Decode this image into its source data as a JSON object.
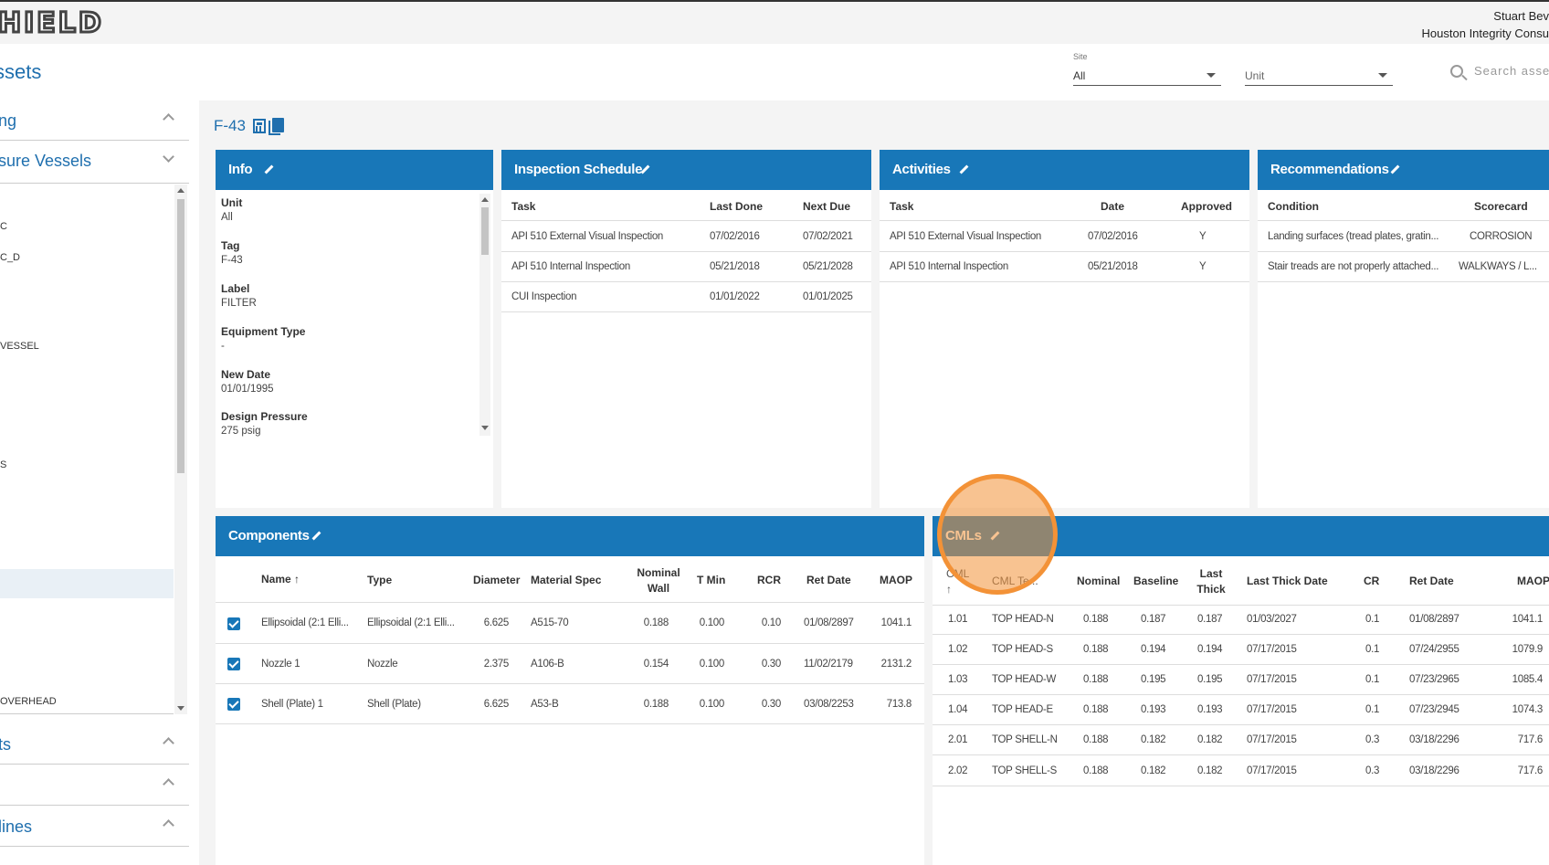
{
  "app": {
    "logo_text": "HIELD"
  },
  "user": {
    "name": "Stuart Bev",
    "org": "Houston Integrity Consu"
  },
  "page": {
    "title": "ssets"
  },
  "filters": {
    "site": {
      "label": "Site",
      "value": "All"
    },
    "unit": {
      "label": "",
      "value": "Unit"
    },
    "search_placeholder": "Search asset"
  },
  "sidebar": {
    "sections": [
      {
        "label": "ng",
        "expanded": false
      },
      {
        "label": "sure Vessels",
        "expanded": true
      },
      {
        "label": "ts",
        "expanded": false
      },
      {
        "label": "",
        "expanded": false
      },
      {
        "label": "lines",
        "expanded": false
      }
    ],
    "items": [
      "C",
      "C_D",
      "VESSEL",
      "S",
      "OVERHEAD"
    ]
  },
  "asset": {
    "tag": "F-43"
  },
  "info": {
    "title": "Info",
    "fields": [
      {
        "label": "Unit",
        "value": "All"
      },
      {
        "label": "Tag",
        "value": "F-43"
      },
      {
        "label": "Label",
        "value": "FILTER"
      },
      {
        "label": "Equipment Type",
        "value": "-"
      },
      {
        "label": "New Date",
        "value": "01/01/1995"
      },
      {
        "label": "Design Pressure",
        "value": "275 psig"
      }
    ]
  },
  "inspection_schedule": {
    "title": "Inspection Schedule",
    "columns": [
      "Task",
      "Last Done",
      "Next Due"
    ],
    "rows": [
      [
        "API 510 External Visual Inspection",
        "07/02/2016",
        "07/02/2021"
      ],
      [
        "API 510 Internal Inspection",
        "05/21/2018",
        "05/21/2028"
      ],
      [
        "CUI Inspection",
        "01/01/2022",
        "01/01/2025"
      ]
    ]
  },
  "activities": {
    "title": "Activities",
    "columns": [
      "Task",
      "Date",
      "Approved"
    ],
    "rows": [
      [
        "API 510 External Visual Inspection",
        "07/02/2016",
        "Y"
      ],
      [
        "API 510 Internal Inspection",
        "05/21/2018",
        "Y"
      ]
    ]
  },
  "recommendations": {
    "title": "Recommendations",
    "columns": [
      "Condition",
      "Scorecard"
    ],
    "rows": [
      [
        "Landing surfaces (tread plates, gratin...",
        "CORROSION"
      ],
      [
        "Stair treads are not properly attached...",
        "WALKWAYS / L..."
      ]
    ]
  },
  "components": {
    "title": "Components",
    "columns": [
      "Name ↑",
      "Type",
      "Diameter",
      "Material Spec",
      "Nominal Wall",
      "T Min",
      "RCR",
      "Ret Date",
      "MAOP"
    ],
    "rows": [
      [
        "Ellipsoidal (2:1 Elli...",
        "Ellipsoidal (2:1 Elli...",
        "6.625",
        "A515-70",
        "0.188",
        "0.100",
        "0.10",
        "01/08/2897",
        "1041.1"
      ],
      [
        "Nozzle 1",
        "Nozzle",
        "2.375",
        "A106-B",
        "0.154",
        "0.100",
        "0.30",
        "11/02/2179",
        "2131.2"
      ],
      [
        "Shell (Plate) 1",
        "Shell (Plate)",
        "6.625",
        "A53-B",
        "0.188",
        "0.100",
        "0.30",
        "03/08/2253",
        "713.8"
      ]
    ]
  },
  "cmls": {
    "title": "CMLs",
    "columns": [
      "CML ↑",
      "CML Te...",
      "Nominal",
      "Baseline",
      "Last Thick",
      "Last Thick Date",
      "CR",
      "Ret Date",
      "MAOP"
    ],
    "rows": [
      [
        "1.01",
        "TOP HEAD-N",
        "0.188",
        "0.187",
        "0.187",
        "01/03/2027",
        "0.1",
        "01/08/2897",
        "1041.1"
      ],
      [
        "1.02",
        "TOP HEAD-S",
        "0.188",
        "0.194",
        "0.194",
        "07/17/2015",
        "0.1",
        "07/24/2955",
        "1079.9"
      ],
      [
        "1.03",
        "TOP HEAD-W",
        "0.188",
        "0.195",
        "0.195",
        "07/17/2015",
        "0.1",
        "07/23/2965",
        "1085.4"
      ],
      [
        "1.04",
        "TOP HEAD-E",
        "0.188",
        "0.193",
        "0.193",
        "07/17/2015",
        "0.1",
        "07/23/2945",
        "1074.3"
      ],
      [
        "2.01",
        "TOP SHELL-N",
        "0.188",
        "0.182",
        "0.182",
        "07/17/2015",
        "0.3",
        "03/18/2296",
        "717.6"
      ],
      [
        "2.02",
        "TOP SHELL-S",
        "0.188",
        "0.182",
        "0.182",
        "07/17/2015",
        "0.3",
        "03/18/2296",
        "717.6"
      ]
    ]
  },
  "colors": {
    "header_blue": "#1877b8",
    "title_blue": "#1f6fae",
    "highlight": "#f39237"
  }
}
